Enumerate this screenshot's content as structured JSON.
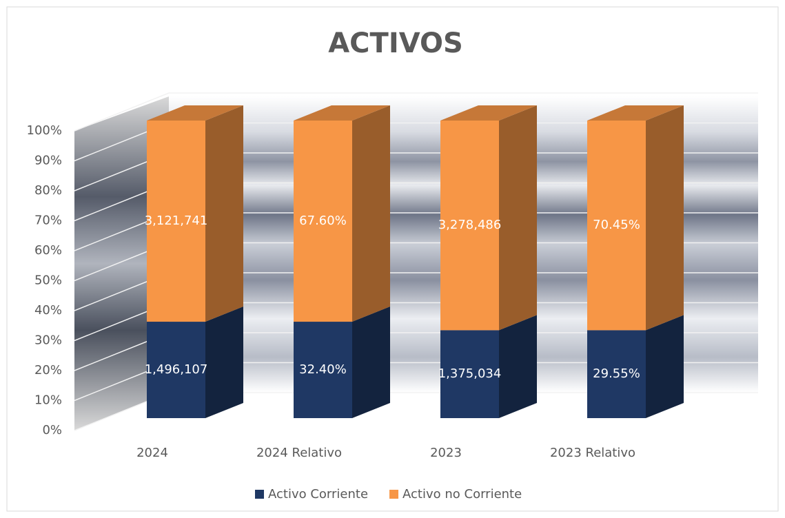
{
  "chart_data": {
    "type": "bar",
    "stacked": "percent",
    "title": "ACTIVOS",
    "categories": [
      "2024",
      "2024 Relativo",
      "2023",
      "2023 Relativo"
    ],
    "series": [
      {
        "name": "Activo Corriente",
        "color": "#1f3864",
        "values": [
          1496107,
          32.4,
          1375034,
          29.55
        ],
        "value_labels": [
          "1,496,107",
          "32.40%",
          "1,375,034",
          "29.55%"
        ]
      },
      {
        "name": "Activo no Corriente",
        "color": "#f79646",
        "values": [
          3121741,
          67.6,
          3278486,
          70.45
        ],
        "value_labels": [
          "3,121,741",
          "67.60%",
          "3,278,486",
          "70.45%"
        ]
      }
    ],
    "ylim": [
      0,
      100
    ],
    "yticks": [
      {
        "value": 0,
        "label": "0%"
      },
      {
        "value": 10,
        "label": "10%"
      },
      {
        "value": 20,
        "label": "20%"
      },
      {
        "value": 30,
        "label": "30%"
      },
      {
        "value": 40,
        "label": "40%"
      },
      {
        "value": 50,
        "label": "50%"
      },
      {
        "value": 60,
        "label": "60%"
      },
      {
        "value": 70,
        "label": "70%"
      },
      {
        "value": 80,
        "label": "80%"
      },
      {
        "value": 90,
        "label": "90%"
      },
      {
        "value": 100,
        "label": "100%"
      }
    ],
    "grid": true,
    "legend": "bottom"
  }
}
